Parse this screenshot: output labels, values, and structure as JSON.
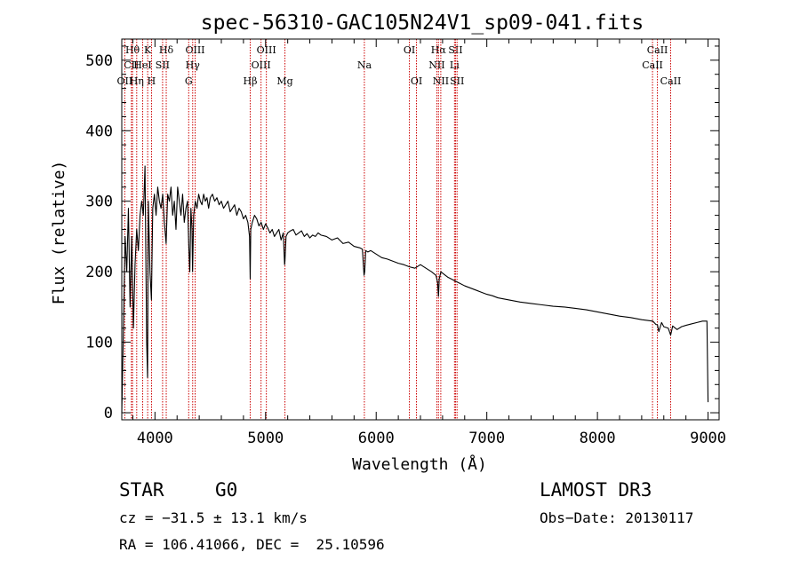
{
  "chart_data": {
    "type": "line",
    "title": "spec-56310-GAC105N24V1_sp09-041.fits",
    "xlabel": "Wavelength (Å)",
    "ylabel": "Flux (relative)",
    "xlim": [
      3700,
      9100
    ],
    "ylim": [
      -10,
      530
    ],
    "xticks": [
      4000,
      5000,
      6000,
      7000,
      8000,
      9000
    ],
    "yticks": [
      0,
      100,
      200,
      300,
      400,
      500
    ],
    "grid": false,
    "series": [
      {
        "name": "flux",
        "x": [
          3700,
          3715,
          3730,
          3745,
          3760,
          3775,
          3790,
          3805,
          3820,
          3835,
          3850,
          3865,
          3880,
          3895,
          3910,
          3925,
          3933,
          3940,
          3955,
          3968,
          3980,
          3995,
          4010,
          4025,
          4040,
          4055,
          4070,
          4085,
          4101,
          4115,
          4130,
          4145,
          4160,
          4175,
          4190,
          4205,
          4220,
          4235,
          4250,
          4265,
          4280,
          4295,
          4305,
          4315,
          4325,
          4335,
          4340,
          4350,
          4365,
          4380,
          4395,
          4410,
          4425,
          4440,
          4455,
          4470,
          4485,
          4500,
          4520,
          4540,
          4560,
          4580,
          4600,
          4620,
          4640,
          4660,
          4680,
          4700,
          4720,
          4740,
          4760,
          4780,
          4800,
          4820,
          4840,
          4855,
          4861,
          4866,
          4880,
          4900,
          4920,
          4940,
          4960,
          4980,
          5000,
          5020,
          5040,
          5060,
          5080,
          5100,
          5120,
          5140,
          5160,
          5172,
          5175,
          5185,
          5200,
          5225,
          5250,
          5275,
          5300,
          5325,
          5350,
          5375,
          5400,
          5425,
          5450,
          5475,
          5500,
          5550,
          5600,
          5650,
          5700,
          5750,
          5800,
          5850,
          5875,
          5890,
          5896,
          5905,
          5925,
          5950,
          6000,
          6050,
          6100,
          6150,
          6200,
          6250,
          6300,
          6350,
          6400,
          6450,
          6500,
          6540,
          6555,
          6563,
          6570,
          6585,
          6600,
          6650,
          6700,
          6750,
          6800,
          6850,
          6900,
          6950,
          7000,
          7050,
          7100,
          7200,
          7300,
          7400,
          7500,
          7600,
          7700,
          7800,
          7900,
          8000,
          8100,
          8200,
          8300,
          8400,
          8500,
          8530,
          8542,
          8555,
          8580,
          8600,
          8640,
          8662,
          8680,
          8720,
          8760,
          8800,
          8850,
          8900,
          8950,
          8990,
          9000
        ],
        "values": [
          0,
          120,
          250,
          200,
          290,
          150,
          250,
          120,
          210,
          260,
          230,
          280,
          300,
          280,
          350,
          100,
          50,
          300,
          200,
          160,
          290,
          310,
          280,
          320,
          300,
          290,
          310,
          270,
          240,
          310,
          300,
          320,
          280,
          300,
          260,
          320,
          300,
          280,
          310,
          270,
          290,
          300,
          240,
          200,
          290,
          260,
          200,
          280,
          300,
          290,
          310,
          300,
          295,
          310,
          300,
          305,
          290,
          305,
          310,
          300,
          305,
          295,
          300,
          290,
          295,
          300,
          285,
          290,
          295,
          280,
          290,
          285,
          275,
          280,
          270,
          250,
          190,
          260,
          270,
          280,
          275,
          265,
          270,
          260,
          268,
          262,
          255,
          260,
          250,
          255,
          260,
          245,
          255,
          210,
          215,
          250,
          255,
          258,
          260,
          252,
          255,
          258,
          250,
          254,
          248,
          252,
          250,
          255,
          252,
          250,
          245,
          248,
          240,
          242,
          236,
          234,
          232,
          195,
          200,
          230,
          228,
          230,
          225,
          220,
          218,
          215,
          212,
          210,
          207,
          205,
          210,
          205,
          200,
          195,
          185,
          165,
          190,
          200,
          198,
          192,
          188,
          184,
          180,
          177,
          174,
          171,
          168,
          166,
          163,
          160,
          157,
          155,
          153,
          151,
          150,
          148,
          146,
          143,
          140,
          137,
          135,
          132,
          130,
          125,
          125,
          115,
          128,
          122,
          120,
          110,
          123,
          118,
          122,
          124,
          126,
          128,
          130,
          130,
          15
        ]
      }
    ],
    "spectral_lines": [
      {
        "label": "Hθ",
        "x": 3797,
        "row": 0
      },
      {
        "label": "CII",
        "x": 3787,
        "row": 1
      },
      {
        "label": "OII",
        "x": 3727,
        "row": 2
      },
      {
        "label": "K",
        "x": 3934,
        "row": 0
      },
      {
        "label": "HeI",
        "x": 3889,
        "row": 1
      },
      {
        "label": "Hη",
        "x": 3835,
        "row": 2
      },
      {
        "label": "Hδ",
        "x": 4102,
        "row": 0
      },
      {
        "label": "SII",
        "x": 4069,
        "row": 1
      },
      {
        "label": "H",
        "x": 3969,
        "row": 2
      },
      {
        "label": "OIII",
        "x": 4363,
        "row": 0
      },
      {
        "label": "Hγ",
        "x": 4341,
        "row": 1
      },
      {
        "label": "G",
        "x": 4305,
        "row": 2
      },
      {
        "label": "OIII",
        "x": 5007,
        "row": 0
      },
      {
        "label": "OIII",
        "x": 4959,
        "row": 1
      },
      {
        "label": "Hβ",
        "x": 4861,
        "row": 2
      },
      {
        "label": "Mg",
        "x": 5175,
        "row": 2
      },
      {
        "label": "Na",
        "x": 5893,
        "row": 1
      },
      {
        "label": "OI",
        "x": 6300,
        "row": 0
      },
      {
        "label": "OI",
        "x": 6364,
        "row": 2
      },
      {
        "label": "Hα",
        "x": 6563,
        "row": 0
      },
      {
        "label": "NII",
        "x": 6548,
        "row": 1
      },
      {
        "label": "NII",
        "x": 6584,
        "row": 2
      },
      {
        "label": "SII",
        "x": 6717,
        "row": 0
      },
      {
        "label": "Li",
        "x": 6708,
        "row": 1
      },
      {
        "label": "SII",
        "x": 6731,
        "row": 2
      },
      {
        "label": "CaII",
        "x": 8542,
        "row": 0
      },
      {
        "label": "CaII",
        "x": 8498,
        "row": 1
      },
      {
        "label": "CaII",
        "x": 8662,
        "row": 2
      }
    ]
  },
  "info": {
    "class": "STAR",
    "subclass": "G0",
    "survey": "LAMOST DR3",
    "cz": "cz = −31.5 ± 13.1 km/s",
    "obs_date": "Obs−Date: 20130117",
    "coords": "RA = 106.41066, DEC =  25.10596"
  }
}
